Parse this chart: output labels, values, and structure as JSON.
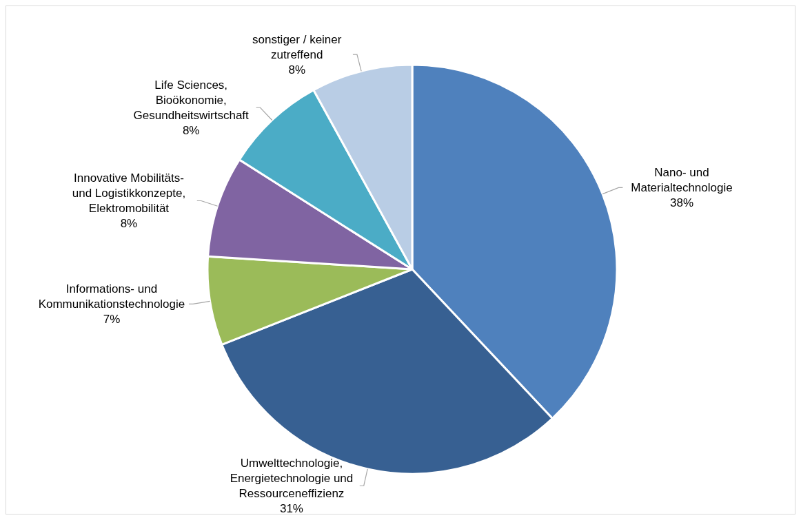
{
  "chart_data": {
    "type": "pie",
    "categories": [
      "Nano- und Materialtechnologie",
      "Umwelttechnologie, Energietechnologie und Ressourceneffizienz",
      "Informations- und Kommunikationstechnologie",
      "Innovative Mobilitäts- und Logistikkonzepte, Elektromobilität",
      "Life Sciences, Bioökonomie, Gesundheitswirtschaft",
      "sonstiger / keiner zutreffend"
    ],
    "values": [
      38,
      31,
      7,
      8,
      8,
      8
    ],
    "value_labels": [
      "38%",
      "31%",
      "7%",
      "8%",
      "8%",
      "8%"
    ],
    "colors": [
      "#4f81bd",
      "#376092",
      "#9bbb59",
      "#8064a2",
      "#4bacc6",
      "#b9cde5"
    ],
    "legend": false
  }
}
